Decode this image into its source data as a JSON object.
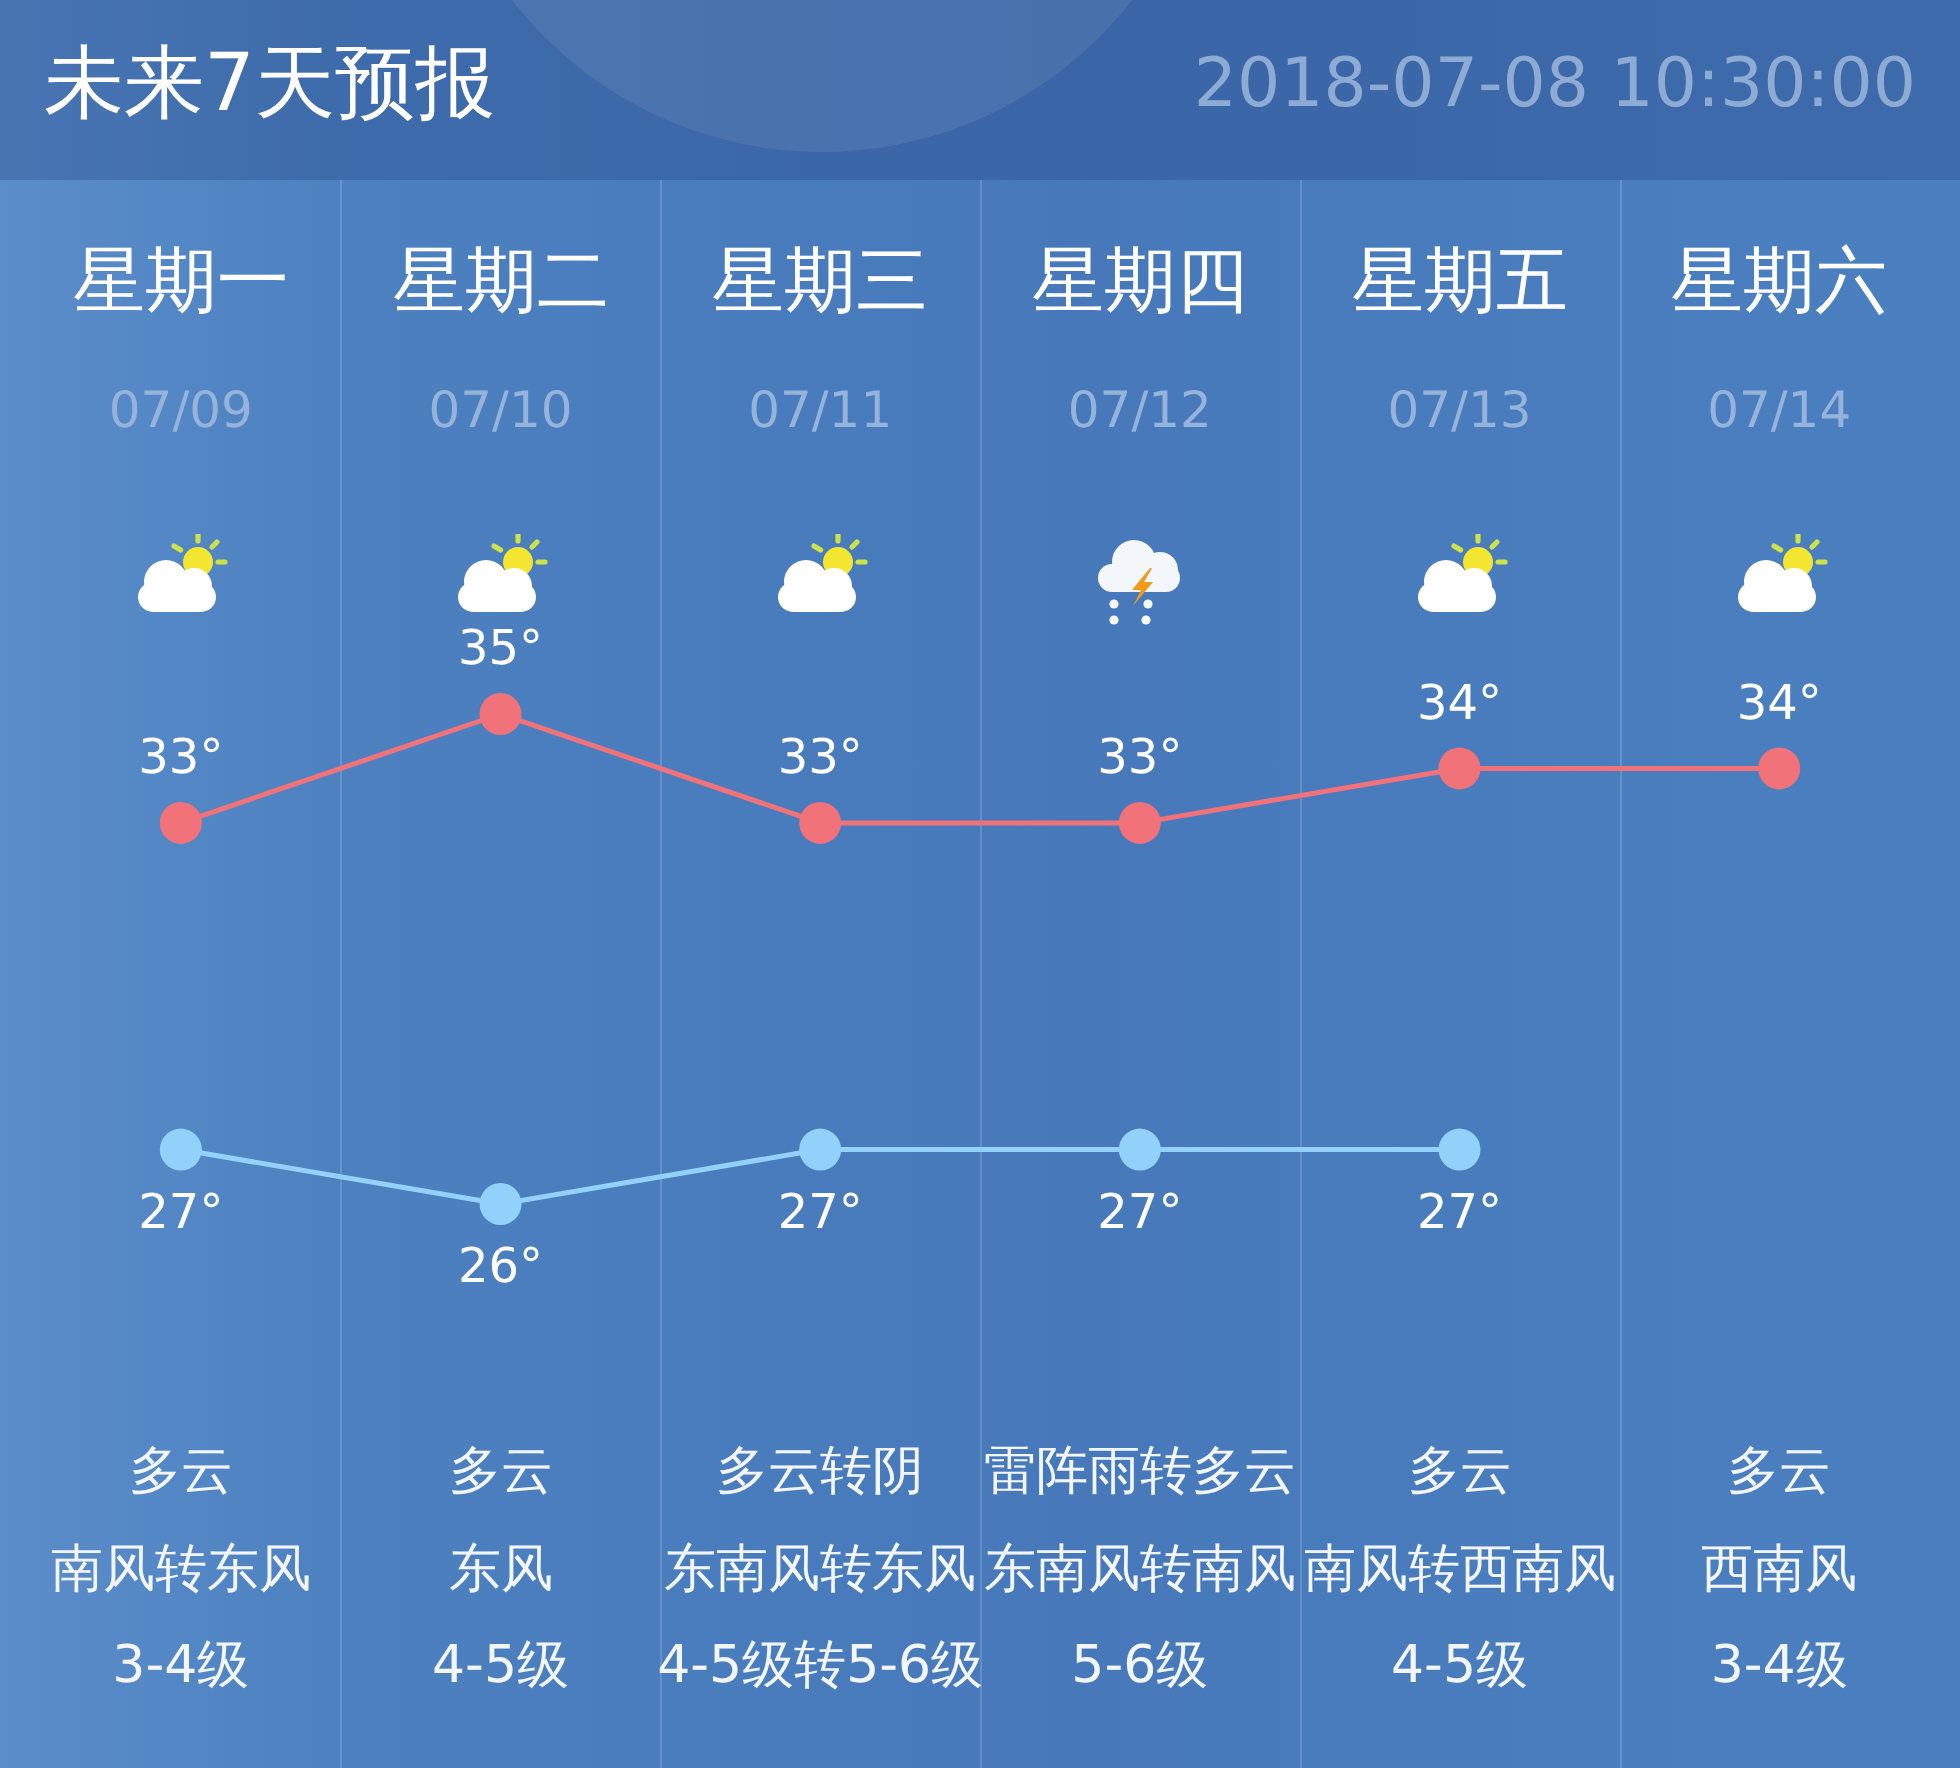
{
  "chart_data": {
    "type": "line",
    "title": "未来7天预报",
    "subtitle": "2018-07-08 10:30:00",
    "categories": [
      "星期一",
      "星期二",
      "星期三",
      "星期四",
      "星期五",
      "星期六"
    ],
    "series": [
      {
        "color": "#f2727a",
        "values": [
          33,
          35,
          33,
          33,
          34,
          34
        ],
        "value_labels": [
          "33°",
          "35°",
          "33°",
          "33°",
          "34°",
          "34°"
        ]
      },
      {
        "color": "#92d2fa",
        "values": [
          27,
          26,
          27,
          27,
          27,
          null
        ],
        "value_labels": [
          "27°",
          "26°",
          "27°",
          "27°",
          "27°",
          null
        ]
      }
    ],
    "marker": "circle",
    "line_style": "solid",
    "grid": "x",
    "annotations": [
      "07/09",
      "多云",
      "南风转东风",
      "3-4级",
      "07/10",
      "多云",
      "东风",
      "4-5级",
      "07/11",
      "多云转阴",
      "东南风转东风",
      "4-5级转5-6级",
      "07/12",
      "雷阵雨转多云",
      "东南风转南风",
      "5-6级",
      "07/13",
      "多云",
      "南风转西南风",
      "4-5级",
      "07/14",
      "多云",
      "西南风",
      "3-4级"
    ]
  }
}
